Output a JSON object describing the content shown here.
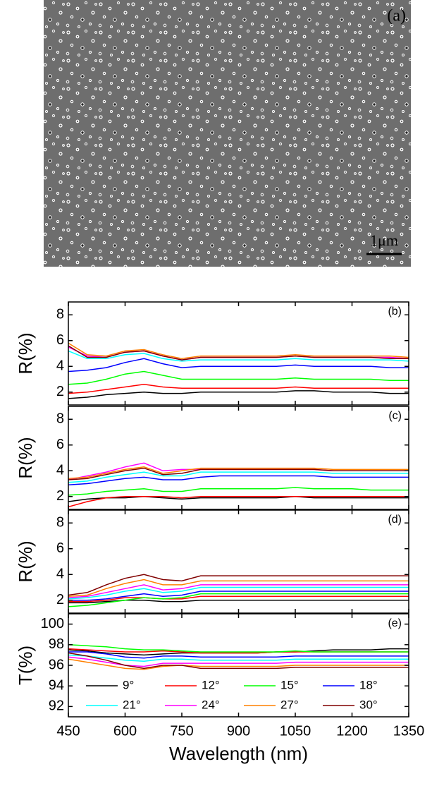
{
  "image": {
    "label": "(a)",
    "scale_bar": "1μm"
  },
  "chart_data": [
    {
      "type": "line",
      "ylabel": "R(%)",
      "panel": "(b)",
      "xlim": [
        450,
        1350
      ],
      "xticks": [
        450,
        600,
        750,
        900,
        1050,
        1200,
        1350
      ],
      "ylim": [
        1,
        9
      ],
      "yticks": [
        2,
        4,
        6,
        8
      ],
      "x": [
        450,
        500,
        550,
        600,
        650,
        700,
        750,
        800,
        850,
        900,
        950,
        1000,
        1050,
        1100,
        1150,
        1200,
        1250,
        1300,
        1350
      ],
      "series": [
        {
          "name": "9°",
          "color": "#000000",
          "values": [
            1.5,
            1.6,
            1.8,
            1.9,
            2.0,
            1.9,
            1.9,
            2.0,
            2.0,
            2.0,
            2.0,
            2.0,
            2.1,
            2.1,
            2.0,
            2.0,
            2.0,
            1.9,
            1.9
          ]
        },
        {
          "name": "12°",
          "color": "#ff0000",
          "values": [
            1.9,
            2.0,
            2.2,
            2.4,
            2.6,
            2.4,
            2.3,
            2.3,
            2.3,
            2.3,
            2.3,
            2.3,
            2.4,
            2.3,
            2.3,
            2.3,
            2.3,
            2.3,
            2.3
          ]
        },
        {
          "name": "15°",
          "color": "#00ff00",
          "values": [
            2.6,
            2.7,
            3.0,
            3.4,
            3.6,
            3.3,
            3.0,
            3.0,
            3.0,
            3.0,
            3.0,
            3.0,
            3.1,
            3.0,
            3.0,
            3.0,
            3.0,
            2.9,
            2.9
          ]
        },
        {
          "name": "18°",
          "color": "#0000ff",
          "values": [
            3.6,
            3.7,
            3.9,
            4.3,
            4.6,
            4.2,
            3.9,
            4.0,
            4.0,
            4.0,
            4.0,
            4.0,
            4.1,
            4.0,
            4.0,
            4.0,
            4.0,
            3.9,
            3.9
          ]
        },
        {
          "name": "21°",
          "color": "#00ffff",
          "values": [
            5.2,
            4.6,
            4.6,
            4.9,
            5.0,
            4.6,
            4.4,
            4.5,
            4.5,
            4.5,
            4.5,
            4.5,
            4.6,
            4.5,
            4.5,
            4.5,
            4.5,
            4.5,
            4.4
          ]
        },
        {
          "name": "24°",
          "color": "#ff00ff",
          "values": [
            5.5,
            4.8,
            4.7,
            5.1,
            5.2,
            4.8,
            4.5,
            4.7,
            4.7,
            4.7,
            4.7,
            4.7,
            4.8,
            4.7,
            4.7,
            4.7,
            4.7,
            4.7,
            4.6
          ]
        },
        {
          "name": "27°",
          "color": "#ff8000",
          "values": [
            5.8,
            4.9,
            4.8,
            5.2,
            5.3,
            4.9,
            4.6,
            4.8,
            4.8,
            4.8,
            4.8,
            4.8,
            4.9,
            4.8,
            4.8,
            4.8,
            4.8,
            4.8,
            4.7
          ]
        },
        {
          "name": "30°",
          "color": "#800000",
          "values": [
            5.6,
            4.7,
            4.7,
            5.1,
            5.2,
            4.8,
            4.5,
            4.7,
            4.7,
            4.7,
            4.7,
            4.7,
            4.8,
            4.7,
            4.7,
            4.7,
            4.7,
            4.6,
            4.6
          ]
        }
      ]
    },
    {
      "type": "line",
      "ylabel": "R(%)",
      "panel": "(c)",
      "xlim": [
        450,
        1350
      ],
      "xticks": [
        450,
        600,
        750,
        900,
        1050,
        1200,
        1350
      ],
      "ylim": [
        1,
        9
      ],
      "yticks": [
        2,
        4,
        6,
        8
      ],
      "x": [
        450,
        500,
        550,
        600,
        650,
        700,
        750,
        800,
        850,
        900,
        950,
        1000,
        1050,
        1100,
        1150,
        1200,
        1250,
        1300,
        1350
      ],
      "series": [
        {
          "name": "9°",
          "color": "#000000",
          "values": [
            1.6,
            1.8,
            1.9,
            1.9,
            2.0,
            1.9,
            1.8,
            1.9,
            1.9,
            1.9,
            1.9,
            1.9,
            2.0,
            1.9,
            1.9,
            1.9,
            1.9,
            1.9,
            1.9
          ]
        },
        {
          "name": "12°",
          "color": "#ff0000",
          "values": [
            1.2,
            1.6,
            1.9,
            2.0,
            2.0,
            2.0,
            1.9,
            2.0,
            2.0,
            2.0,
            2.0,
            2.0,
            2.0,
            2.0,
            2.0,
            2.0,
            2.0,
            2.0,
            2.0
          ]
        },
        {
          "name": "15°",
          "color": "#00ff00",
          "values": [
            2.1,
            2.2,
            2.4,
            2.5,
            2.6,
            2.4,
            2.4,
            2.6,
            2.6,
            2.6,
            2.6,
            2.6,
            2.7,
            2.6,
            2.6,
            2.6,
            2.5,
            2.5,
            2.5
          ]
        },
        {
          "name": "18°",
          "color": "#0000ff",
          "values": [
            2.9,
            3.0,
            3.2,
            3.4,
            3.5,
            3.3,
            3.3,
            3.5,
            3.6,
            3.6,
            3.6,
            3.6,
            3.6,
            3.6,
            3.5,
            3.5,
            3.5,
            3.5,
            3.5
          ]
        },
        {
          "name": "21°",
          "color": "#00ffff",
          "values": [
            3.1,
            3.2,
            3.5,
            3.7,
            3.9,
            3.6,
            3.6,
            3.9,
            3.9,
            3.9,
            3.9,
            3.9,
            3.9,
            3.9,
            3.8,
            3.8,
            3.8,
            3.8,
            3.8
          ]
        },
        {
          "name": "24°",
          "color": "#ff00ff",
          "values": [
            3.3,
            3.6,
            3.9,
            4.3,
            4.6,
            4.0,
            4.1,
            4.1,
            4.1,
            4.1,
            4.1,
            4.1,
            4.1,
            4.1,
            4.0,
            4.0,
            4.0,
            4.0,
            4.0
          ]
        },
        {
          "name": "27°",
          "color": "#ff8000",
          "values": [
            3.4,
            3.5,
            3.8,
            4.1,
            4.3,
            3.8,
            4.0,
            4.2,
            4.2,
            4.2,
            4.2,
            4.2,
            4.2,
            4.2,
            4.1,
            4.1,
            4.1,
            4.1,
            4.1
          ]
        },
        {
          "name": "30°",
          "color": "#800000",
          "values": [
            3.3,
            3.4,
            3.7,
            4.0,
            4.2,
            3.7,
            3.8,
            4.1,
            4.1,
            4.1,
            4.1,
            4.1,
            4.1,
            4.1,
            4.0,
            4.0,
            4.0,
            4.0,
            4.0
          ]
        }
      ]
    },
    {
      "type": "line",
      "ylabel": "R(%)",
      "panel": "(d)",
      "xlim": [
        450,
        1350
      ],
      "xticks": [
        450,
        600,
        750,
        900,
        1050,
        1200,
        1350
      ],
      "ylim": [
        1,
        9
      ],
      "yticks": [
        2,
        4,
        6,
        8
      ],
      "x": [
        450,
        500,
        550,
        600,
        650,
        700,
        750,
        800,
        850,
        900,
        950,
        1000,
        1050,
        1100,
        1150,
        1200,
        1250,
        1300,
        1350
      ],
      "series": [
        {
          "name": "9°",
          "color": "#000000",
          "values": [
            1.8,
            1.8,
            1.9,
            2.0,
            2.0,
            1.9,
            1.9,
            2.0,
            2.0,
            2.0,
            2.0,
            2.0,
            2.0,
            2.0,
            2.0,
            2.0,
            2.0,
            2.0,
            2.0
          ]
        },
        {
          "name": "12°",
          "color": "#ff0000",
          "values": [
            1.9,
            1.9,
            2.0,
            2.2,
            2.2,
            2.1,
            2.1,
            2.3,
            2.3,
            2.3,
            2.3,
            2.3,
            2.3,
            2.3,
            2.3,
            2.3,
            2.3,
            2.3,
            2.3
          ]
        },
        {
          "name": "15°",
          "color": "#00ff00",
          "values": [
            1.5,
            1.6,
            1.8,
            2.0,
            2.2,
            2.1,
            2.2,
            2.5,
            2.5,
            2.5,
            2.5,
            2.5,
            2.5,
            2.5,
            2.5,
            2.5,
            2.5,
            2.5,
            2.5
          ]
        },
        {
          "name": "18°",
          "color": "#0000ff",
          "values": [
            2.0,
            2.0,
            2.1,
            2.3,
            2.5,
            2.3,
            2.4,
            2.7,
            2.7,
            2.7,
            2.7,
            2.7,
            2.7,
            2.7,
            2.7,
            2.7,
            2.7,
            2.7,
            2.7
          ]
        },
        {
          "name": "21°",
          "color": "#00ffff",
          "values": [
            2.1,
            2.2,
            2.4,
            2.7,
            2.9,
            2.6,
            2.7,
            3.0,
            3.0,
            3.0,
            3.0,
            3.0,
            3.0,
            3.0,
            3.0,
            3.0,
            3.0,
            3.0,
            3.0
          ]
        },
        {
          "name": "24°",
          "color": "#ff00ff",
          "values": [
            2.2,
            2.3,
            2.6,
            2.9,
            3.2,
            2.8,
            2.9,
            3.2,
            3.2,
            3.2,
            3.2,
            3.2,
            3.2,
            3.2,
            3.2,
            3.2,
            3.2,
            3.2,
            3.2
          ]
        },
        {
          "name": "27°",
          "color": "#ff8000",
          "values": [
            2.3,
            2.4,
            2.9,
            3.3,
            3.6,
            3.2,
            3.2,
            3.5,
            3.5,
            3.5,
            3.5,
            3.5,
            3.5,
            3.5,
            3.5,
            3.5,
            3.5,
            3.5,
            3.5
          ]
        },
        {
          "name": "30°",
          "color": "#800000",
          "values": [
            2.4,
            2.6,
            3.2,
            3.7,
            4.0,
            3.6,
            3.5,
            3.9,
            3.9,
            3.9,
            3.9,
            3.9,
            3.9,
            3.9,
            3.9,
            3.9,
            3.9,
            3.9,
            3.9
          ]
        }
      ]
    },
    {
      "type": "line",
      "ylabel": "T(%)",
      "panel": "(e)",
      "xlabel": "Wavelength (nm)",
      "xlim": [
        450,
        1350
      ],
      "xticks": [
        450,
        600,
        750,
        900,
        1050,
        1200,
        1350
      ],
      "ylim": [
        91,
        101
      ],
      "yticks": [
        92,
        94,
        96,
        98,
        100
      ],
      "legend": "bottom",
      "x": [
        450,
        500,
        550,
        600,
        650,
        700,
        750,
        800,
        850,
        900,
        950,
        1000,
        1050,
        1100,
        1150,
        1200,
        1250,
        1300,
        1350
      ],
      "series": [
        {
          "name": "9°",
          "color": "#000000",
          "values": [
            97.5,
            97.4,
            97.2,
            97.1,
            97.0,
            97.1,
            97.2,
            97.2,
            97.2,
            97.2,
            97.2,
            97.3,
            97.3,
            97.4,
            97.5,
            97.5,
            97.5,
            97.6,
            97.6
          ]
        },
        {
          "name": "12°",
          "color": "#ff0000",
          "values": [
            97.6,
            97.5,
            97.4,
            97.3,
            97.3,
            97.4,
            97.3,
            97.2,
            97.2,
            97.2,
            97.2,
            97.3,
            97.3,
            97.3,
            97.3,
            97.3,
            97.3,
            97.3,
            97.3
          ]
        },
        {
          "name": "15°",
          "color": "#00ff00",
          "values": [
            98.0,
            97.9,
            97.8,
            97.6,
            97.5,
            97.5,
            97.4,
            97.3,
            97.3,
            97.3,
            97.3,
            97.3,
            97.4,
            97.3,
            97.3,
            97.3,
            97.3,
            97.3,
            97.3
          ]
        },
        {
          "name": "18°",
          "color": "#0000ff",
          "values": [
            97.3,
            97.3,
            97.1,
            96.8,
            96.7,
            96.9,
            96.9,
            96.8,
            96.8,
            96.8,
            96.8,
            96.8,
            96.9,
            96.9,
            96.9,
            96.9,
            96.9,
            96.9,
            96.9
          ]
        },
        {
          "name": "21°",
          "color": "#00ffff",
          "values": [
            97.0,
            96.9,
            96.7,
            96.5,
            96.4,
            96.6,
            96.6,
            96.5,
            96.5,
            96.5,
            96.5,
            96.5,
            96.6,
            96.6,
            96.6,
            96.6,
            96.6,
            96.6,
            96.6
          ]
        },
        {
          "name": "24°",
          "color": "#ff00ff",
          "values": [
            96.8,
            96.6,
            96.3,
            96.0,
            95.9,
            96.2,
            96.2,
            96.2,
            96.2,
            96.2,
            96.2,
            96.2,
            96.3,
            96.3,
            96.3,
            96.3,
            96.3,
            96.3,
            96.3
          ]
        },
        {
          "name": "27°",
          "color": "#ff8000",
          "values": [
            96.6,
            96.3,
            96.0,
            95.7,
            95.6,
            95.9,
            96.0,
            95.9,
            95.9,
            95.9,
            95.9,
            95.9,
            96.0,
            96.0,
            96.0,
            96.0,
            96.0,
            96.0,
            96.0
          ]
        },
        {
          "name": "30°",
          "color": "#800000",
          "values": [
            97.2,
            96.9,
            96.5,
            96.0,
            95.7,
            96.0,
            96.0,
            95.7,
            95.7,
            95.7,
            95.7,
            95.7,
            95.8,
            95.8,
            95.8,
            95.8,
            95.8,
            95.8,
            95.8
          ]
        }
      ]
    }
  ]
}
